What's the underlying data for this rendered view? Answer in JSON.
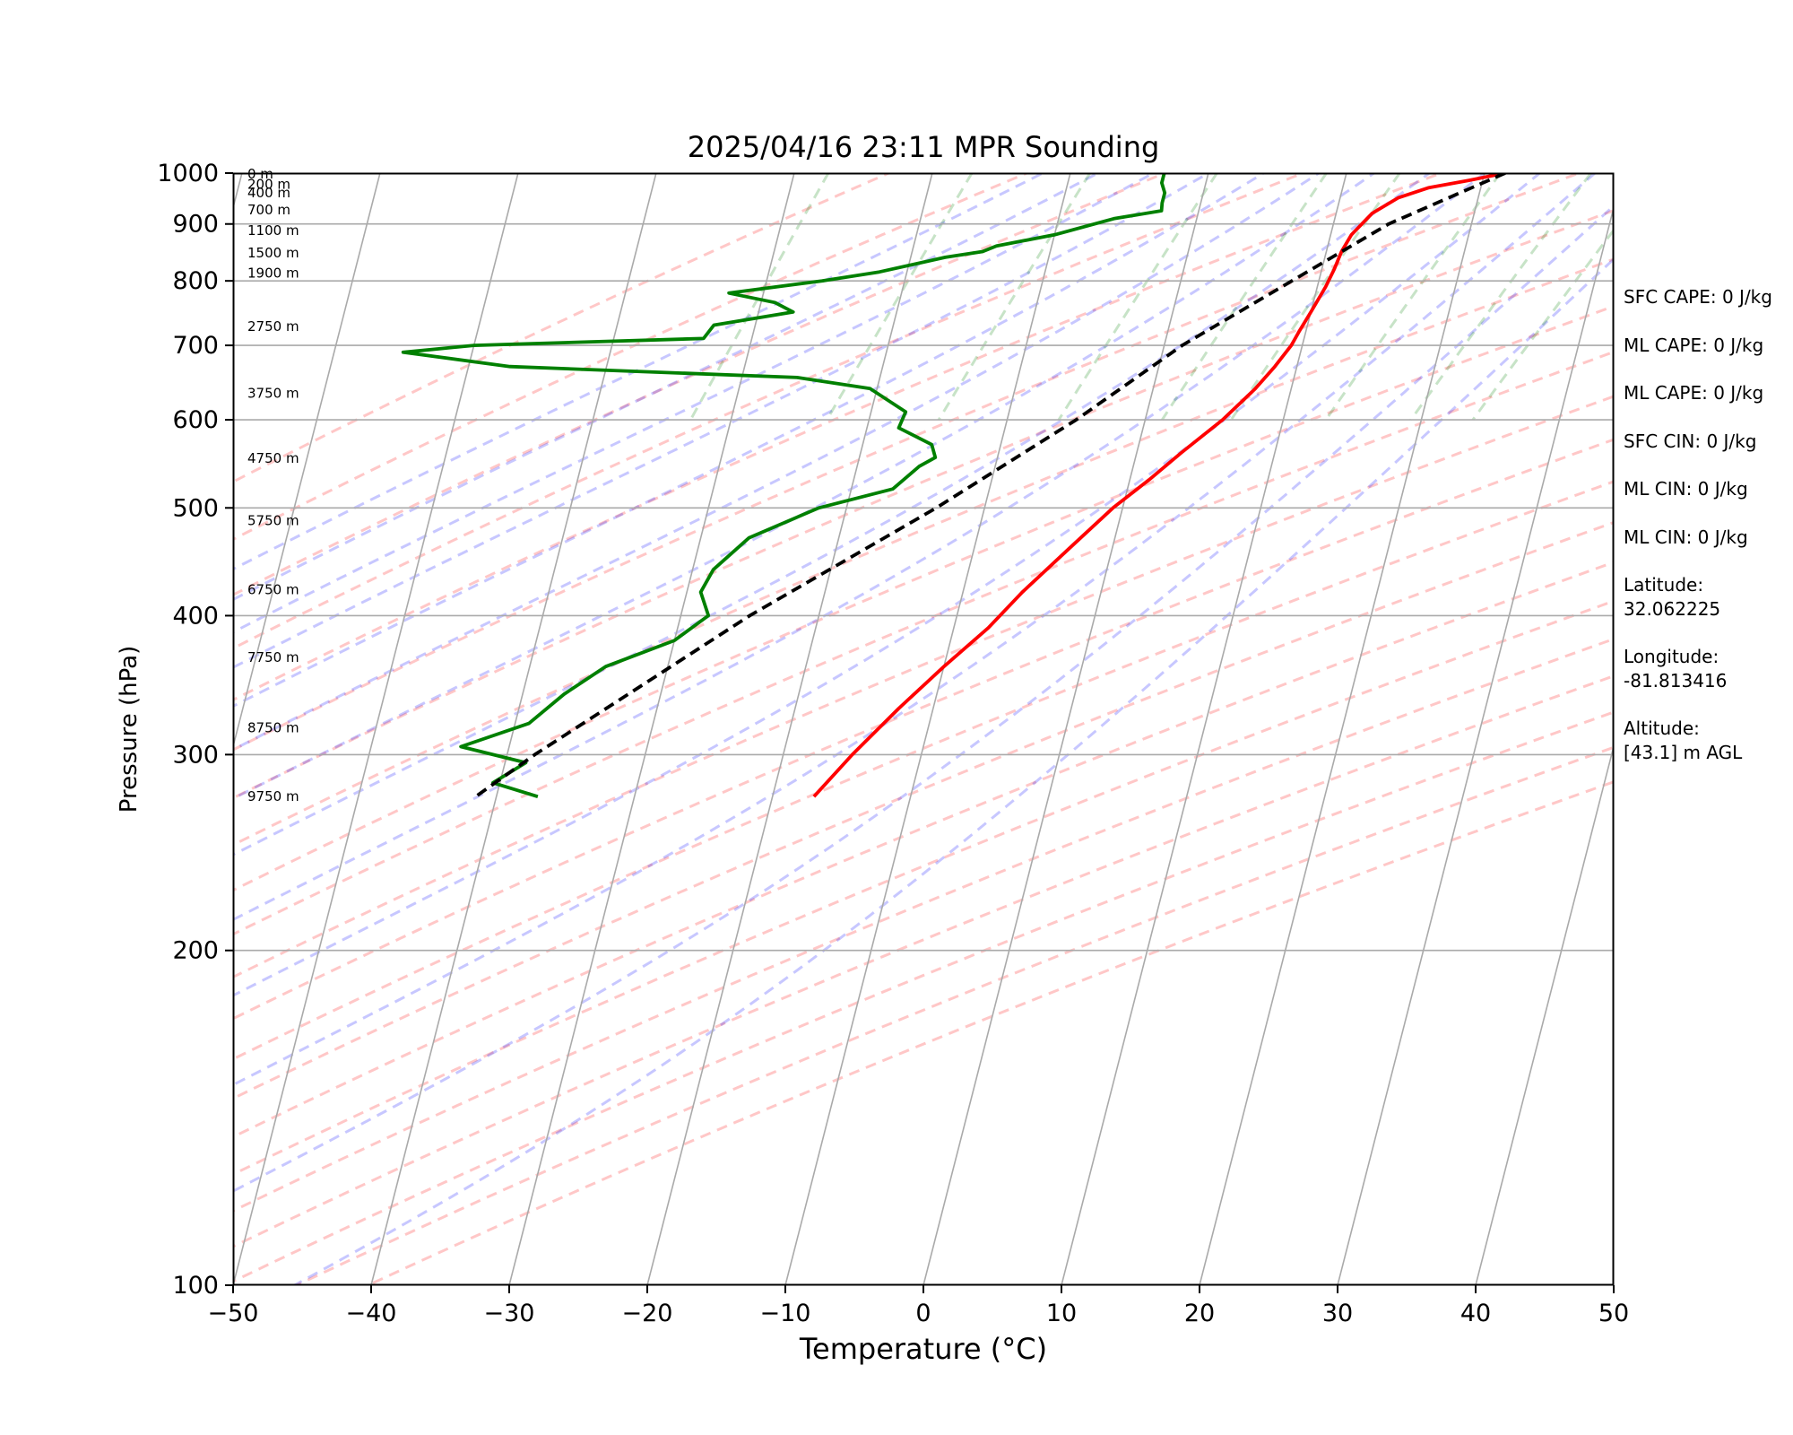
{
  "chart_data": {
    "type": "line",
    "title": "2025/04/16 23:11 MPR Sounding",
    "xlabel": "Temperature (°C)",
    "ylabel": "Pressure (hPa)",
    "xlim": [
      -50,
      50
    ],
    "ylim": [
      1000,
      100
    ],
    "y_scale": "log",
    "x_ticks": [
      "−50",
      "−40",
      "−30",
      "−20",
      "−10",
      "0",
      "10",
      "20",
      "30",
      "40",
      "50"
    ],
    "x_tick_values": [
      -50,
      -40,
      -30,
      -20,
      -10,
      0,
      10,
      20,
      30,
      40,
      50
    ],
    "y_ticks": [
      "100",
      "200",
      "300",
      "400",
      "500",
      "600",
      "700",
      "800",
      "900",
      "1000"
    ],
    "y_tick_values": [
      100,
      200,
      300,
      400,
      500,
      600,
      700,
      800,
      900,
      1000
    ],
    "skew": true,
    "grid": true,
    "series": [
      {
        "role": "temperature",
        "color": "#ff0000",
        "points": [
          [
            1000,
            21.5
          ],
          [
            985,
            19
          ],
          [
            970,
            16.2
          ],
          [
            950,
            14.2
          ],
          [
            920,
            12.6
          ],
          [
            880,
            11.5
          ],
          [
            850,
            11.1
          ],
          [
            820,
            10.9
          ],
          [
            790,
            10.6
          ],
          [
            750,
            10.0
          ],
          [
            720,
            9.5
          ],
          [
            700,
            9.2
          ],
          [
            670,
            8.4
          ],
          [
            640,
            7.4
          ],
          [
            600,
            5.6
          ],
          [
            560,
            3.2
          ],
          [
            530,
            1.4
          ],
          [
            500,
            -0.7
          ],
          [
            460,
            -3.1
          ],
          [
            420,
            -5.7
          ],
          [
            390,
            -7.5
          ],
          [
            360,
            -10.0
          ],
          [
            330,
            -12.5
          ],
          [
            300,
            -15.0
          ],
          [
            275,
            -17.0
          ]
        ]
      },
      {
        "role": "dewpoint",
        "color": "#008000",
        "points": [
          [
            1000,
            -3.2
          ],
          [
            990,
            -3.2
          ],
          [
            980,
            -3.2
          ],
          [
            960,
            -2.8
          ],
          [
            940,
            -2.8
          ],
          [
            925,
            -2.7
          ],
          [
            910,
            -6.0
          ],
          [
            880,
            -10.0
          ],
          [
            860,
            -14.0
          ],
          [
            850,
            -14.9
          ],
          [
            840,
            -17.5
          ],
          [
            815,
            -22.0
          ],
          [
            800,
            -26.0
          ],
          [
            780,
            -32.5
          ],
          [
            765,
            -29.0
          ],
          [
            750,
            -27.5
          ],
          [
            730,
            -33.0
          ],
          [
            710,
            -33.5
          ],
          [
            700,
            -50.0
          ],
          [
            690,
            -55.0
          ],
          [
            670,
            -47.0
          ],
          [
            655,
            -26.0
          ],
          [
            640,
            -20.5
          ],
          [
            610,
            -17.5
          ],
          [
            590,
            -17.7
          ],
          [
            570,
            -15.0
          ],
          [
            555,
            -14.5
          ],
          [
            545,
            -15.5
          ],
          [
            520,
            -17.0
          ],
          [
            500,
            -22.0
          ],
          [
            470,
            -26.5
          ],
          [
            440,
            -28.5
          ],
          [
            420,
            -29.0
          ],
          [
            400,
            -28.0
          ],
          [
            380,
            -30.0
          ],
          [
            360,
            -34.5
          ],
          [
            340,
            -37.0
          ],
          [
            320,
            -39.0
          ],
          [
            305,
            -43.5
          ],
          [
            295,
            -38.5
          ],
          [
            283,
            -40.5
          ],
          [
            275,
            -37.0
          ]
        ]
      },
      {
        "role": "parcel",
        "color": "#000000",
        "style": "dashed",
        "points": [
          [
            1000,
            21.5
          ],
          [
            900,
            14.0
          ],
          [
            700,
            1.3
          ],
          [
            600,
            -5.0
          ],
          [
            500,
            -13.5
          ],
          [
            400,
            -25.0
          ],
          [
            300,
            -38.0
          ],
          [
            275,
            -41.5
          ]
        ]
      }
    ],
    "dry_adiabats_K": [
      250,
      260,
      270,
      280,
      290,
      300,
      310,
      320,
      330,
      340,
      350,
      360,
      370,
      380,
      390,
      400,
      410,
      420,
      430,
      440,
      450
    ],
    "moist_adiabats_C_at_1000": [
      -12,
      -8,
      -4,
      0,
      4,
      8,
      12,
      16,
      20,
      24,
      28,
      32,
      36
    ],
    "mixing_ratio_lines_gkg": [
      0.4,
      1,
      2,
      4,
      7,
      10,
      16,
      24,
      32
    ],
    "height_labels": [
      "9750 m",
      "8750 m",
      "7750 m",
      "6750 m",
      "5750 m",
      "4750 m",
      "3750 m",
      "2750 m",
      "1900 m",
      "1500 m",
      "1100 m",
      "700 m",
      "400 m",
      "200 m",
      "0 m"
    ],
    "height_label_pressures": [
      275,
      317,
      367,
      422,
      487,
      554,
      634,
      728,
      813,
      848,
      888,
      927,
      960,
      977,
      998
    ]
  },
  "stats": {
    "lines": [
      "SFC CAPE: 0 J/kg",
      "ML CAPE: 0 J/kg",
      "ML CAPE: 0 J/kg",
      "SFC CIN: 0 J/kg",
      "ML CIN: 0 J/kg",
      "ML CIN: 0 J/kg"
    ],
    "latitude_label": "Latitude:",
    "latitude_value": "32.062225",
    "longitude_label": "Longitude:",
    "longitude_value": "-81.813416",
    "altitude_label": "Altitude:",
    "altitude_value": "[43.1] m AGL"
  }
}
